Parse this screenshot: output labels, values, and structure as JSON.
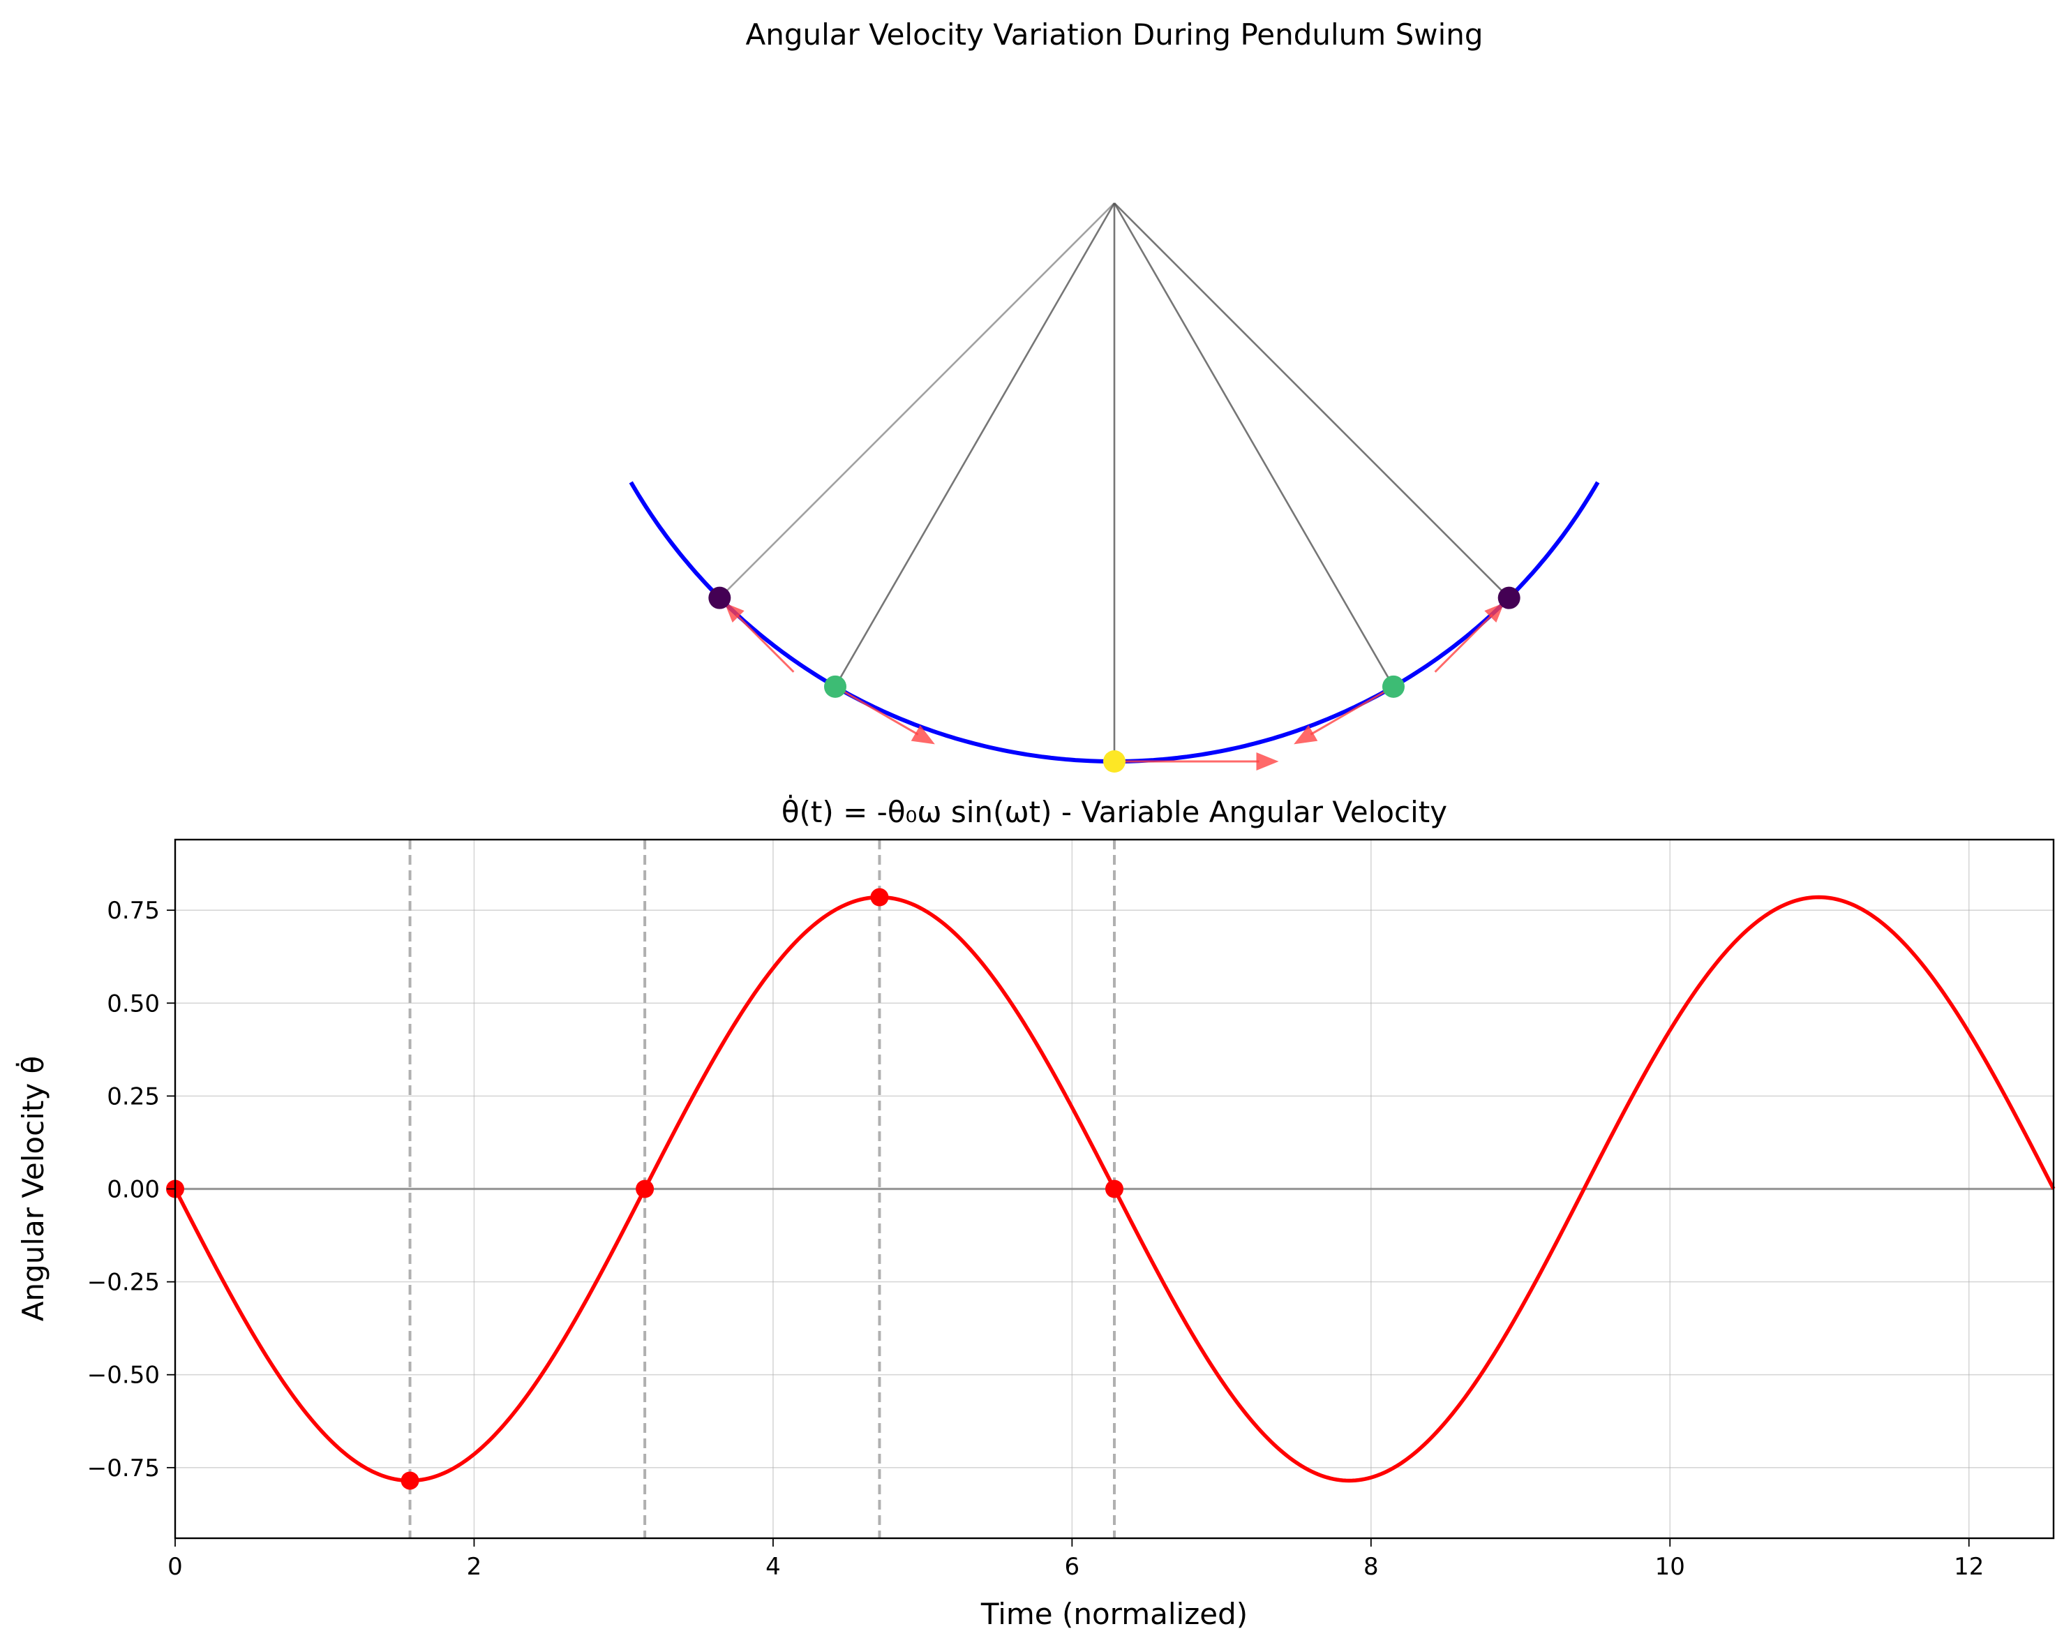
{
  "figure": {
    "title": "Angular Velocity Variation During Pendulum Swing",
    "colors": {
      "arc": "#0000ff",
      "string": "#555555",
      "velocity_arrow": "#ff4444",
      "curve": "#ff0000",
      "zero_line": "#808080",
      "vline": "#b0b0b0"
    }
  },
  "chart_data": [
    {
      "type": "diagram",
      "description_only": false,
      "pivot": {
        "x": 0,
        "y": 0
      },
      "pendulum_length": 1.0,
      "arc_angle_range_deg": [
        -60,
        60
      ],
      "bobs": [
        {
          "angle_deg": -45,
          "color": "#440154",
          "velocity": 0.0,
          "arrow_dir": -1
        },
        {
          "angle_deg": -30,
          "color": "#3dbc74",
          "velocity": 0.55,
          "arrow_dir": 1
        },
        {
          "angle_deg": 0,
          "color": "#fde725",
          "velocity": 0.785,
          "arrow_dir": 1
        },
        {
          "angle_deg": 30,
          "color": "#3dbc74",
          "velocity": 0.55,
          "arrow_dir": -1
        },
        {
          "angle_deg": 45,
          "color": "#440154",
          "velocity": 0.0,
          "arrow_dir": 1
        }
      ]
    },
    {
      "type": "line",
      "title": "θ̇(t) = -θ₀ω sin(ωt) - Variable Angular Velocity",
      "xlabel": "Time (normalized)",
      "ylabel": "Angular Velocity θ̇",
      "xlim": [
        0,
        12.566
      ],
      "ylim": [
        -0.94,
        0.94
      ],
      "xticks": [
        0,
        2,
        4,
        6,
        8,
        10,
        12
      ],
      "yticks": [
        -0.75,
        -0.5,
        -0.25,
        0.0,
        0.25,
        0.5,
        0.75
      ],
      "ytick_labels": [
        "−0.75",
        "−0.50",
        "−0.25",
        "0.00",
        "0.25",
        "0.50",
        "0.75"
      ],
      "xtick_labels": [
        "0",
        "2",
        "4",
        "6",
        "8",
        "10",
        "12"
      ],
      "grid": true,
      "amplitude": 0.785,
      "function": "-A*sin(t)",
      "series": [
        {
          "name": "",
          "x_range": [
            0,
            12.566
          ],
          "color": "#ff0000"
        }
      ],
      "markers": [
        {
          "x": 0.0,
          "y": 0.0
        },
        {
          "x": 1.571,
          "y": -0.785
        },
        {
          "x": 3.142,
          "y": 0.0
        },
        {
          "x": 4.712,
          "y": 0.785
        },
        {
          "x": 6.283,
          "y": 0.0
        }
      ],
      "vlines": [
        1.571,
        3.142,
        4.712,
        6.283
      ],
      "hline": 0.0
    }
  ]
}
